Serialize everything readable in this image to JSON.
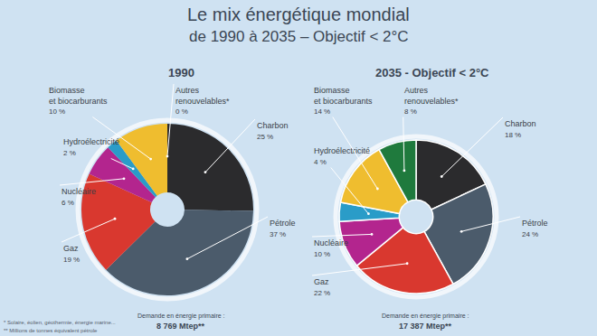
{
  "title": "Le mix énergétique mondial",
  "subtitle": "de 1990 à 2035 – Objectif < 2°C",
  "notes": [
    "* Solaire, éolien, géothermie, énergie marine...",
    "** Millions de tonnes équivalent pétrole"
  ],
  "chart_data": [
    {
      "type": "pie",
      "title": "1990",
      "categories": [
        "Charbon",
        "Pétrole",
        "Gaz",
        "Nucléaire",
        "Hydroélectricité",
        "Biomasse\net biocarburants",
        "Autres\nrenouvelables*"
      ],
      "values": [
        25,
        37,
        19,
        6,
        2,
        10,
        0
      ],
      "value_labels": [
        "25 %",
        "37 %",
        "19 %",
        "6 %",
        "2 %",
        "10 %",
        "0 %"
      ],
      "colors": [
        "#2b2b2d",
        "#4b5b6b",
        "#d9382f",
        "#b3258e",
        "#2a9cc8",
        "#efbd2f",
        "#1f7a3d"
      ],
      "data_labels": true,
      "footer": [
        "Demande en énergie primaire :",
        "8 769 Mtep**"
      ]
    },
    {
      "type": "pie",
      "title": "2035 - Objectif < 2°C",
      "categories": [
        "Charbon",
        "Pétrole",
        "Gaz",
        "Nucléaire",
        "Hydroélectricité",
        "Biomasse\net biocarburants",
        "Autres\nrenouvelables*"
      ],
      "values": [
        18,
        24,
        22,
        10,
        4,
        14,
        8
      ],
      "value_labels": [
        "18 %",
        "24 %",
        "22 %",
        "10 %",
        "4 %",
        "14 %",
        "8 %"
      ],
      "colors": [
        "#2b2b2d",
        "#4b5b6b",
        "#d9382f",
        "#b3258e",
        "#2a9cc8",
        "#efbd2f",
        "#1f7a3d"
      ],
      "data_labels": true,
      "footer": [
        "Demande en énergie primaire :",
        "17 387 Mtep**"
      ]
    }
  ]
}
